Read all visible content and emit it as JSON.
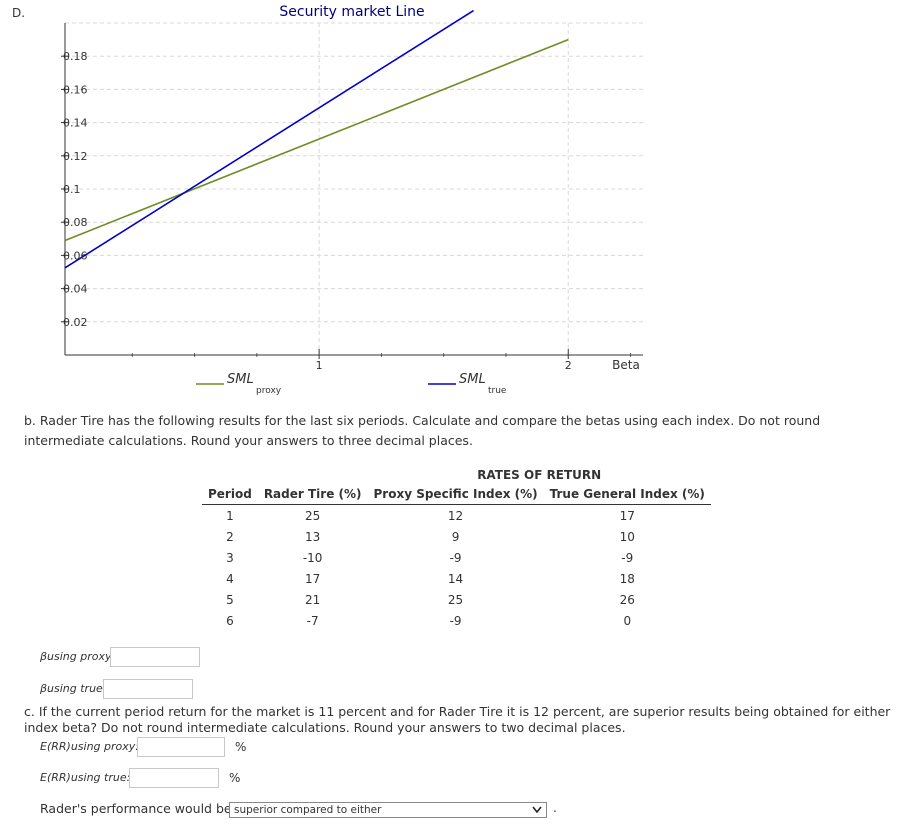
{
  "part_d_label": "D.",
  "chart_data": {
    "type": "line",
    "title": "Security market Line",
    "xlabel": "Beta",
    "ylabel": "",
    "xlim": [
      -0.02,
      2.3
    ],
    "ylim": [
      0,
      0.2
    ],
    "x_ticks": [
      "1",
      "2"
    ],
    "y_ticks": [
      "0.02",
      "0.04",
      "0.06",
      "0.08",
      "0.1",
      "0.12",
      "0.14",
      "0.16",
      "0.18"
    ],
    "grid": true,
    "legend_position": "bottom",
    "series": [
      {
        "name": "SML",
        "subscript": "proxy",
        "color": "#6b8e23",
        "x": [
          -0.02,
          2.0
        ],
        "y": [
          0.069,
          0.19
        ]
      },
      {
        "name": "SML",
        "subscript": "true",
        "color": "#0000cc",
        "x": [
          -0.02,
          1.62
        ],
        "y": [
          0.0525,
          0.2075
        ]
      }
    ]
  },
  "part_b": {
    "prompt": "b. Rader Tire has the following results for the last six periods. Calculate and compare the betas using each index. Do not round intermediate calculations. Round your answers to three decimal places.",
    "table": {
      "super_header": "RATES OF RETURN",
      "columns": [
        "Period",
        "Rader Tire (%)",
        "Proxy Specific Index (%)",
        "True General Index (%)"
      ],
      "rows": [
        [
          "1",
          "25",
          "12",
          "17"
        ],
        [
          "2",
          "13",
          "9",
          "10"
        ],
        [
          "3",
          "-10",
          "-9",
          "-9"
        ],
        [
          "4",
          "17",
          "14",
          "18"
        ],
        [
          "5",
          "21",
          "25",
          "26"
        ],
        [
          "6",
          "-7",
          "-9",
          "0"
        ]
      ]
    },
    "beta_proxy_label": "βusing proxy:",
    "beta_proxy_value": "",
    "beta_true_label": "βusing true:",
    "beta_true_value": ""
  },
  "part_c": {
    "prompt": "c. If the current period return for the market is 11 percent and for Rader Tire it is 12 percent, are superior results being obtained for either index beta? Do not round intermediate calculations. Round your answers to two decimal places.",
    "err_proxy_label": "E(RR)using proxy:",
    "err_proxy_value": "",
    "err_true_label": "E(RR)using true:",
    "err_true_value": "",
    "percent_sign": "%",
    "performance_prefix": "Rader's performance would be",
    "performance_selected": "superior compared to either",
    "performance_suffix": "."
  }
}
